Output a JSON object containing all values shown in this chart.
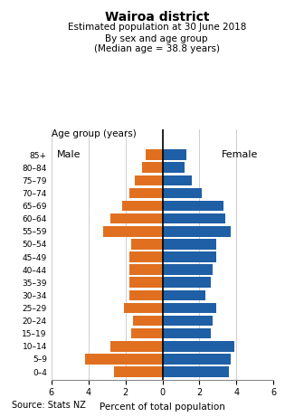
{
  "title": "Wairoa district",
  "subtitle1": "Estimated population at 30 June 2018",
  "subtitle2": "By sex and age group",
  "subtitle3": "(Median age = 38.8 years)",
  "age_groups": [
    "0–4",
    "5–9",
    "10–14",
    "15–19",
    "20–24",
    "25–29",
    "30–34",
    "35–39",
    "40–44",
    "45–49",
    "50–54",
    "55–59",
    "60–64",
    "65–69",
    "70–74",
    "75–79",
    "80–84",
    "85+"
  ],
  "male": [
    2.6,
    4.2,
    2.8,
    1.7,
    1.6,
    2.1,
    1.8,
    1.8,
    1.8,
    1.8,
    1.7,
    3.2,
    2.8,
    2.2,
    1.8,
    1.5,
    1.1,
    0.9
  ],
  "female": [
    3.6,
    3.7,
    3.9,
    2.6,
    2.7,
    2.9,
    2.3,
    2.6,
    2.7,
    2.9,
    2.9,
    3.7,
    3.4,
    3.3,
    2.1,
    1.6,
    1.2,
    1.3
  ],
  "male_color": "#e07020",
  "female_color": "#1f5fa6",
  "xlim": 6,
  "xlabel": "Percent of total population",
  "age_label": "Age group (years)",
  "source": "Source: Stats NZ",
  "bg_color": "#ffffff",
  "grid_color": "#bbbbbb"
}
